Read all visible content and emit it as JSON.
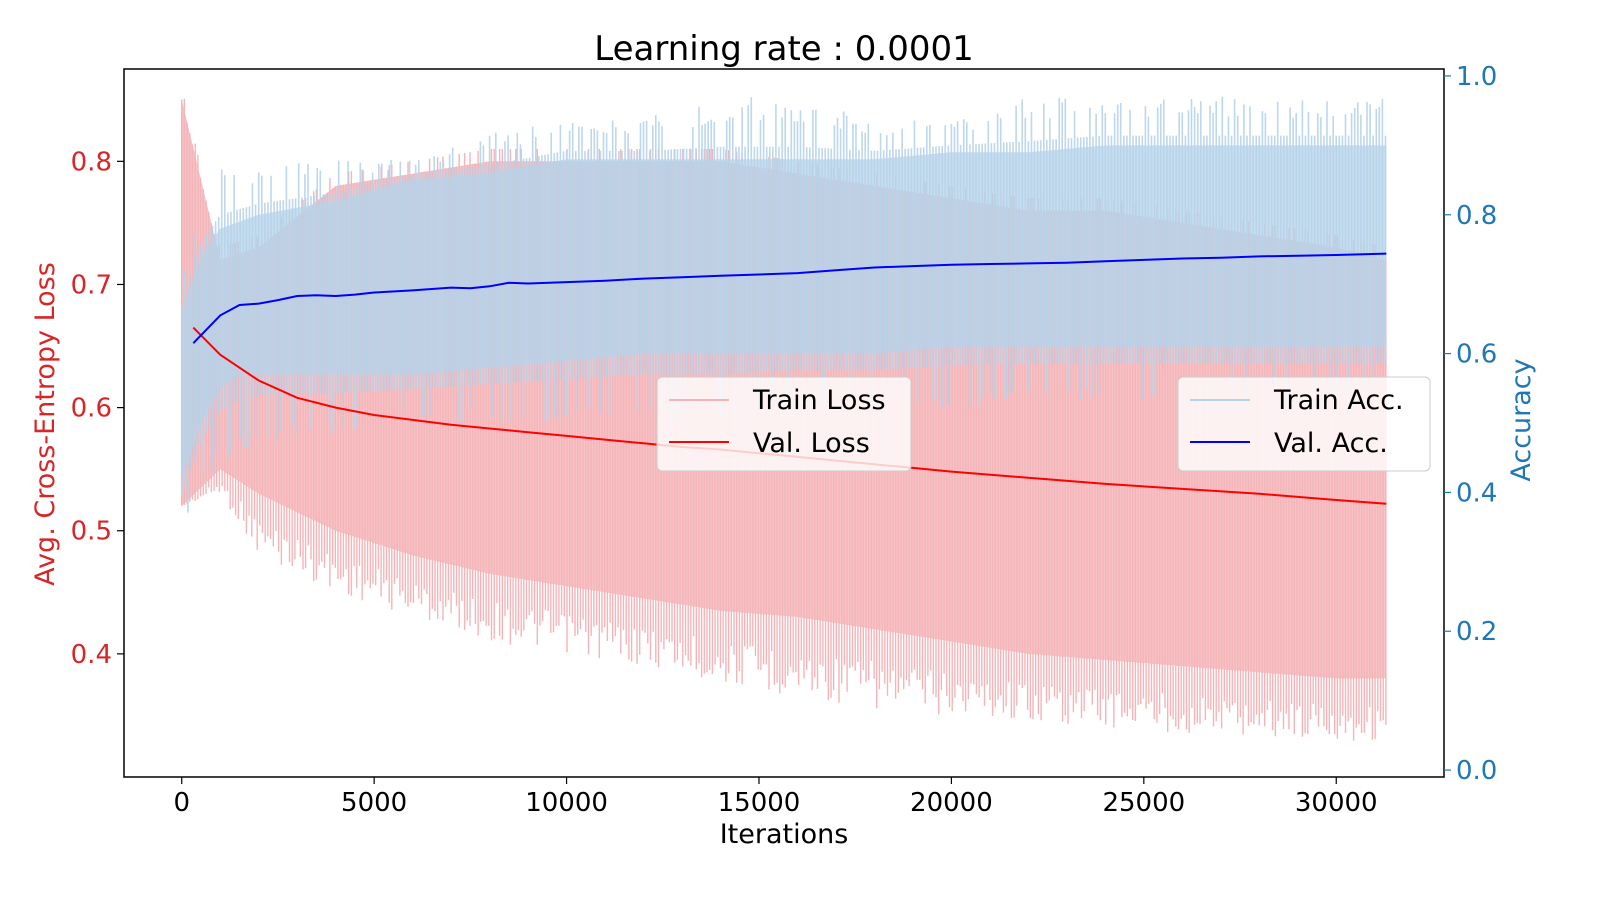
{
  "chart_data": {
    "type": "line",
    "title": "Learning rate : 0.0001",
    "xlabel": "Iterations",
    "ylabel_left": "Avg. Cross-Entropy Loss",
    "ylabel_right": "Accuracy",
    "xlim": [
      -1500,
      32800
    ],
    "ylim_left": [
      0.3,
      0.875
    ],
    "ylim_right": [
      -0.01,
      1.01
    ],
    "x_ticks": [
      0,
      5000,
      10000,
      15000,
      20000,
      25000,
      30000
    ],
    "y_left_ticks": [
      0.4,
      0.5,
      0.6,
      0.7,
      0.8
    ],
    "y_right_ticks": [
      0.0,
      0.2,
      0.4,
      0.6,
      0.8,
      1.0
    ],
    "grid": false,
    "colors": {
      "left_axis": "#d62728",
      "right_axis": "#1f77b4",
      "train_loss": "#f4b4b8",
      "val_loss": "#ff0000",
      "train_acc": "#b6d3ea",
      "val_acc": "#0000ff"
    },
    "legend_left": {
      "placement": "center",
      "entries": [
        "Train Loss",
        "Val. Loss"
      ]
    },
    "legend_right": {
      "placement": "center-right",
      "entries": [
        "Train Acc.",
        "Val. Acc."
      ]
    },
    "series": [
      {
        "name": "Train Loss",
        "axis": "left",
        "style": "band",
        "x": [
          0,
          1000,
          2000,
          4000,
          6000,
          8000,
          10000,
          12000,
          14000,
          16000,
          18000,
          20000,
          22000,
          24000,
          26000,
          28000,
          30000,
          31300
        ],
        "low": [
          0.52,
          0.55,
          0.53,
          0.5,
          0.48,
          0.465,
          0.455,
          0.445,
          0.435,
          0.43,
          0.42,
          0.41,
          0.4,
          0.395,
          0.39,
          0.385,
          0.38,
          0.38
        ],
        "high": [
          0.85,
          0.72,
          0.73,
          0.78,
          0.79,
          0.8,
          0.8,
          0.8,
          0.8,
          0.79,
          0.78,
          0.77,
          0.76,
          0.76,
          0.75,
          0.74,
          0.73,
          0.72
        ],
        "min": [
          0.52,
          0.53,
          0.48,
          0.45,
          0.43,
          0.41,
          0.4,
          0.39,
          0.375,
          0.365,
          0.355,
          0.35,
          0.345,
          0.34,
          0.335,
          0.333,
          0.33,
          0.327
        ]
      },
      {
        "name": "Val. Loss",
        "axis": "left",
        "style": "line",
        "x": [
          300,
          1000,
          2000,
          3000,
          4000,
          5000,
          6000,
          7000,
          8000,
          9000,
          10000,
          11000,
          12000,
          13000,
          14000,
          15000,
          16000,
          17000,
          18000,
          19000,
          20000,
          22000,
          24000,
          26000,
          28000,
          30000,
          31300
        ],
        "y": [
          0.665,
          0.643,
          0.622,
          0.608,
          0.6,
          0.594,
          0.59,
          0.586,
          0.583,
          0.58,
          0.577,
          0.574,
          0.571,
          0.568,
          0.566,
          0.563,
          0.56,
          0.557,
          0.554,
          0.551,
          0.548,
          0.543,
          0.538,
          0.534,
          0.53,
          0.525,
          0.522
        ]
      },
      {
        "name": "Train Acc.",
        "axis": "right",
        "style": "band",
        "x": [
          0,
          500,
          1000,
          1500,
          2000,
          4000,
          6000,
          8000,
          10000,
          12000,
          14000,
          16000,
          18000,
          20000,
          22000,
          24000,
          26000,
          28000,
          30000,
          31300
        ],
        "low": [
          0.34,
          0.41,
          0.44,
          0.45,
          0.47,
          0.48,
          0.5,
          0.5,
          0.5,
          0.5,
          0.5,
          0.52,
          0.52,
          0.52,
          0.53,
          0.53,
          0.53,
          0.53,
          0.53,
          0.53
        ],
        "high": [
          0.7,
          0.84,
          0.88,
          0.88,
          0.88,
          0.88,
          0.88,
          0.92,
          0.94,
          0.94,
          0.97,
          0.97,
          0.94,
          0.94,
          0.97,
          0.97,
          0.97,
          0.97,
          0.97,
          0.97
        ],
        "core_low": [
          0.42,
          0.5,
          0.55,
          0.57,
          0.57,
          0.57,
          0.57,
          0.58,
          0.59,
          0.6,
          0.6,
          0.6,
          0.6,
          0.61,
          0.61,
          0.61,
          0.61,
          0.61,
          0.61,
          0.61
        ],
        "core_high": [
          0.66,
          0.74,
          0.78,
          0.79,
          0.8,
          0.82,
          0.85,
          0.86,
          0.88,
          0.88,
          0.88,
          0.88,
          0.88,
          0.89,
          0.89,
          0.9,
          0.9,
          0.9,
          0.9,
          0.9
        ]
      },
      {
        "name": "Val. Acc.",
        "axis": "right",
        "style": "line",
        "x": [
          300,
          1000,
          1500,
          2000,
          2500,
          3000,
          3500,
          4000,
          4500,
          5000,
          6000,
          7000,
          7500,
          8000,
          8500,
          9000,
          10000,
          11000,
          12000,
          13000,
          14000,
          15000,
          16000,
          17000,
          18000,
          19000,
          20000,
          21000,
          22000,
          23000,
          24000,
          25000,
          26000,
          27000,
          28000,
          29000,
          30000,
          31300
        ],
        "y": [
          0.615,
          0.655,
          0.67,
          0.672,
          0.677,
          0.683,
          0.684,
          0.683,
          0.685,
          0.688,
          0.691,
          0.695,
          0.694,
          0.697,
          0.702,
          0.701,
          0.703,
          0.705,
          0.708,
          0.71,
          0.712,
          0.714,
          0.716,
          0.72,
          0.724,
          0.726,
          0.728,
          0.729,
          0.73,
          0.731,
          0.733,
          0.735,
          0.737,
          0.738,
          0.74,
          0.741,
          0.742,
          0.744
        ]
      }
    ]
  }
}
